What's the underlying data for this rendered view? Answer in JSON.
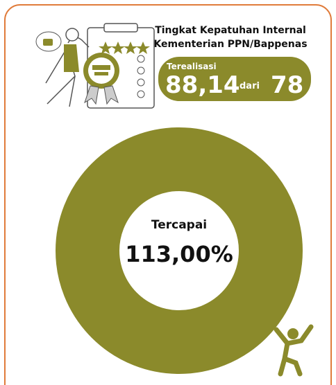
{
  "header": {
    "title_lines": [
      "Tingkat Kepatuhan Internal",
      "Kementerian PPN/Bappenas"
    ]
  },
  "realization": {
    "label": "Terealisasi",
    "value": "88,14",
    "connector": "dari",
    "target": "78"
  },
  "achievement": {
    "label": "Tercapai",
    "value": "113,00%"
  }
}
